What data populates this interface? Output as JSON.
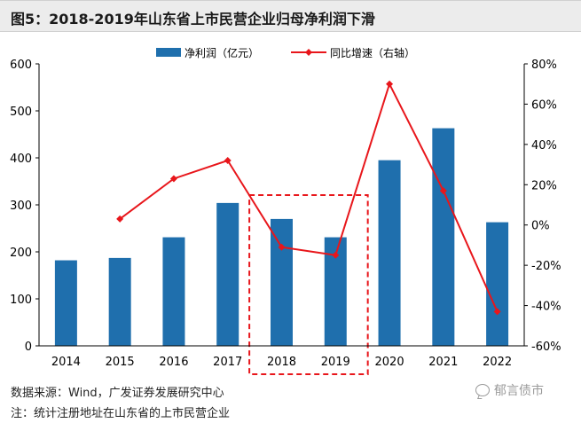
{
  "title": "图5：2018-2019年山东省上市民营企业归母净利润下滑",
  "source": "数据来源：Wind，广发证券发展研究中心",
  "note": "注：统计注册地址在山东省的上市民营企业",
  "watermark": "郁言债市",
  "watermark_icon": "wechat-icon",
  "chart_data": {
    "type": "bar",
    "categories": [
      "2014",
      "2015",
      "2016",
      "2017",
      "2018",
      "2019",
      "2020",
      "2021",
      "2022"
    ],
    "series": [
      {
        "name": "净利润（亿元）",
        "type": "bar",
        "axis": "left",
        "color": "#1f6fad",
        "values": [
          182,
          187,
          231,
          304,
          270,
          231,
          395,
          463,
          263
        ]
      },
      {
        "name": "同比增速（右轴）",
        "type": "line",
        "axis": "right",
        "color": "#e8161b",
        "values": [
          null,
          3,
          23,
          32,
          -11,
          -15,
          70,
          17,
          -43
        ]
      }
    ],
    "y_left": {
      "min": 0,
      "max": 600,
      "ticks": [
        "0",
        "100",
        "200",
        "300",
        "400",
        "500",
        "600"
      ]
    },
    "y_right": {
      "min": -60,
      "max": 80,
      "ticks": [
        "-60%",
        "-40%",
        "-20%",
        "0%",
        "20%",
        "40%",
        "60%",
        "80%"
      ]
    },
    "highlight_categories": [
      "2018",
      "2019"
    ],
    "legend_position": "top",
    "grid": false
  }
}
